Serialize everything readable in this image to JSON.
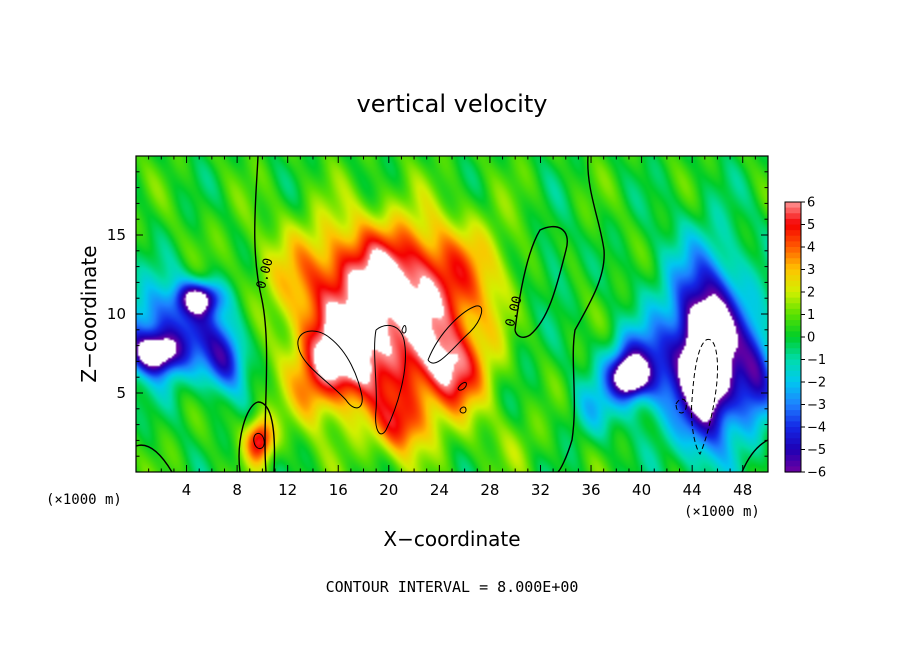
{
  "chart_data": {
    "type": "heatmap",
    "title": "vertical velocity",
    "xlabel": "X−coordinate",
    "ylabel": "Z−coordinate",
    "x_unit": "(×1000 m)",
    "z_unit": "(×1000 m)",
    "footer": "CONTOUR INTERVAL = 8.000E+00",
    "xlim": [
      0,
      50
    ],
    "ylim": [
      0,
      20
    ],
    "x_ticks": [
      "4",
      "8",
      "12",
      "16",
      "20",
      "24",
      "28",
      "32",
      "36",
      "40",
      "44",
      "48"
    ],
    "x_tick_values": [
      4,
      8,
      12,
      16,
      20,
      24,
      28,
      32,
      36,
      40,
      44,
      48
    ],
    "y_ticks": [
      "5",
      "10",
      "15"
    ],
    "y_tick_values": [
      5,
      10,
      15
    ],
    "colorbar": {
      "ticks": [
        "6",
        "5",
        "4",
        "3",
        "2",
        "1",
        "0",
        "−1",
        "−2",
        "−3",
        "−4",
        "−5",
        "−6"
      ],
      "min": -6,
      "max": 6
    },
    "contour_labels": [
      {
        "text": "0.00",
        "x": 10.5,
        "y": 12.5
      },
      {
        "text": "0.00",
        "x": 30.2,
        "y": 10.1
      }
    ],
    "blobs": [
      {
        "x": 20,
        "y": 9,
        "rx": 7,
        "ry": 5.5,
        "v": 5.5
      },
      {
        "x": 20,
        "y": 12.5,
        "rx": 9,
        "ry": 3.5,
        "v": 4
      },
      {
        "x": 16,
        "y": 7,
        "rx": 3,
        "ry": 2.5,
        "v": 5
      },
      {
        "x": 25,
        "y": 6.5,
        "rx": 2.5,
        "ry": 2.5,
        "v": 4.5
      },
      {
        "x": 9.8,
        "y": 2,
        "rx": 1.1,
        "ry": 1.4,
        "v": 6
      },
      {
        "x": 21,
        "y": 3,
        "rx": 2,
        "ry": 2,
        "v": 4
      },
      {
        "x": 3,
        "y": 9,
        "rx": 5,
        "ry": 3,
        "v": -4.5
      },
      {
        "x": 1.5,
        "y": 7.5,
        "rx": 1.8,
        "ry": 1.2,
        "v": -6.5
      },
      {
        "x": 5,
        "y": 11,
        "rx": 1.6,
        "ry": 1,
        "v": -6
      },
      {
        "x": 7,
        "y": 7,
        "rx": 1.6,
        "ry": 2,
        "v": -4
      },
      {
        "x": 45,
        "y": 8,
        "rx": 4,
        "ry": 6,
        "v": -5
      },
      {
        "x": 45.2,
        "y": 7,
        "rx": 2,
        "ry": 4.5,
        "v": -7
      },
      {
        "x": 39.5,
        "y": 6.5,
        "rx": 2.5,
        "ry": 2.2,
        "v": -5
      },
      {
        "x": 39,
        "y": 6,
        "rx": 1.2,
        "ry": 1.1,
        "v": -6.5
      },
      {
        "x": 49,
        "y": 6,
        "rx": 1.5,
        "ry": 3,
        "v": -4
      },
      {
        "x": 30.5,
        "y": 9,
        "rx": 1.5,
        "ry": 4,
        "v": -0.8
      },
      {
        "x": 33,
        "y": 13,
        "rx": 1.5,
        "ry": 3,
        "v": -1.5
      },
      {
        "x": 36,
        "y": 4,
        "rx": 2,
        "ry": 2,
        "v": -1.5
      },
      {
        "x": 14,
        "y": 4.5,
        "rx": 1.5,
        "ry": 2,
        "v": 1.5
      },
      {
        "x": 30,
        "y": 2,
        "rx": 2,
        "ry": 2,
        "v": 1.2
      }
    ]
  }
}
